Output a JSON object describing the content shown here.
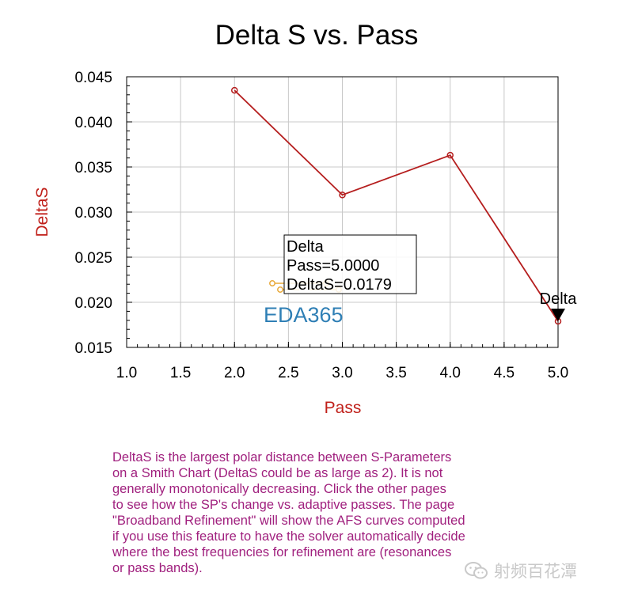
{
  "chart_data": {
    "type": "line",
    "title": "Delta S vs. Pass",
    "xlabel": "Pass",
    "ylabel": "DeltaS",
    "xlim": [
      1.0,
      5.0
    ],
    "ylim": [
      0.015,
      0.045
    ],
    "x_ticks": [
      "1.0",
      "1.5",
      "2.0",
      "2.5",
      "3.0",
      "3.5",
      "4.0",
      "4.5",
      "5.0"
    ],
    "y_ticks": [
      "0.045",
      "0.040",
      "0.035",
      "0.030",
      "0.025",
      "0.020",
      "0.015"
    ],
    "grid": true,
    "series": [
      {
        "x": [
          2.0,
          3.0,
          4.0,
          5.0
        ],
        "y": [
          0.0435,
          0.0319,
          0.0363,
          0.0179
        ],
        "color": "#b51e1e"
      }
    ],
    "marker": {
      "label": "Delta",
      "tooltip": [
        "Delta",
        "Pass=5.0000",
        "DeltaS=0.0179"
      ]
    }
  },
  "note_text": "DeltaS is the largest polar distance between S-Parameters\non a Smith Chart (DeltaS could be as large as 2).  It is not\ngenerally monotonically decreasing.  Click the other pages\nto see how the SP's change vs. adaptive passes.  The page\n\"Broadband Refinement\" will show the AFS curves computed\nif you use this feature to have the solver automatically decide\nwhere the best frequencies for refinement are (resonances\nor pass bands).",
  "logo_text": "EDA365",
  "watermark_text": "射频百花潭",
  "colors": {
    "title": "#000000",
    "axis_label": "#c0201a",
    "series": "#b51e1e",
    "grid": "#c8c8c8",
    "note": "#a0207e",
    "logo": "#2f7fb5",
    "logo_dots": "#e8a838"
  }
}
